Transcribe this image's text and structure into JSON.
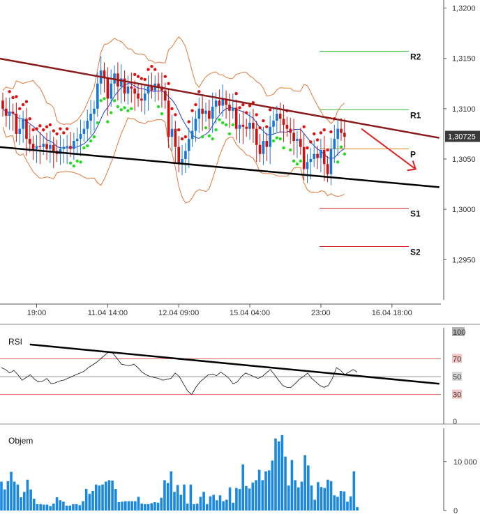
{
  "colors": {
    "candle_up": "#1a78d4",
    "candle_down": "#cc1111",
    "sar_bear": "#e01010",
    "sar_bull": "#22dd22",
    "bollinger": "#e0783a",
    "ma": "#2040cc",
    "resistance_line": "#8b1a1a",
    "support_line": "#000000",
    "pivot_resistance": "#33b833",
    "pivot_support": "#d02020",
    "pivot": "#e08a20",
    "arrow": "#e02020",
    "volume": "#1a88e0",
    "price_tag": "#3a3a3a"
  },
  "chart_data": [
    {
      "type": "candlestick",
      "title": "",
      "y_ticks": [
        "1,3200",
        "1,3150",
        "1,3100",
        "1,3050",
        "1,3000",
        "1,2950"
      ],
      "ylim": [
        1.291,
        1.3208
      ],
      "x_ticks": [
        "19:00",
        "11.04 14:00",
        "12.04 09:00",
        "15.04 04:00",
        "23:00",
        "16.04 18:00"
      ],
      "current_price": "1,30725",
      "pivot_levels": [
        {
          "label": "R2",
          "value": 1.3157
        },
        {
          "label": "R1",
          "value": 1.3099
        },
        {
          "label": "P",
          "value": 1.306
        },
        {
          "label": "S1",
          "value": 1.3001
        },
        {
          "label": "S2",
          "value": 1.2963
        }
      ],
      "trendlines": [
        {
          "name": "resistance",
          "from": [
            0,
            1.315
          ],
          "to": [
            129,
            1.3071
          ]
        },
        {
          "name": "support",
          "from": [
            0,
            1.3062
          ],
          "to": [
            129,
            1.3022
          ]
        }
      ],
      "forecast_arrow": {
        "from": [
          106,
          1.308
        ],
        "to": [
          122,
          1.304
        ]
      },
      "candles_close": [
        1.31,
        1.3093,
        1.3097,
        1.3095,
        1.3075,
        1.308,
        1.309,
        1.307,
        1.3065,
        1.306,
        1.3063,
        1.3062,
        1.3065,
        1.306,
        1.3064,
        1.3058,
        1.3055,
        1.306,
        1.3062,
        1.3063,
        1.306,
        1.3068,
        1.307,
        1.3075,
        1.308,
        1.3088,
        1.3095,
        1.31,
        1.3125,
        1.3138,
        1.313,
        1.311,
        1.3125,
        1.3135,
        1.3122,
        1.313,
        1.3115,
        1.3122,
        1.312,
        1.3115,
        1.311,
        1.3108,
        1.3115,
        1.3122,
        1.3118,
        1.3125,
        1.3122,
        1.3118,
        1.3108,
        1.3072,
        1.308,
        1.3062,
        1.3045,
        1.305,
        1.3058,
        1.307,
        1.3078,
        1.309,
        1.31,
        1.3095,
        1.3098,
        1.309,
        1.3102,
        1.3108,
        1.3103,
        1.311,
        1.3104,
        1.3098,
        1.3101,
        1.308,
        1.3084,
        1.3082,
        1.308,
        1.3086,
        1.308,
        1.3064,
        1.3055,
        1.3068,
        1.3062,
        1.3082,
        1.3088,
        1.3095,
        1.309,
        1.3084,
        1.308,
        1.3076,
        1.3068,
        1.307,
        1.3062,
        1.304,
        1.3047,
        1.305,
        1.3055,
        1.3051,
        1.3059,
        1.3045,
        1.3035,
        1.306,
        1.307,
        1.308,
        1.3076,
        1.3072
      ],
      "candles_open": [
        1.3108,
        1.31,
        1.3093,
        1.3097,
        1.3095,
        1.3075,
        1.308,
        1.309,
        1.307,
        1.3065,
        1.306,
        1.3063,
        1.3062,
        1.3065,
        1.306,
        1.3064,
        1.3058,
        1.3055,
        1.306,
        1.3062,
        1.3063,
        1.306,
        1.3068,
        1.307,
        1.3075,
        1.308,
        1.3088,
        1.3095,
        1.31,
        1.3125,
        1.3138,
        1.313,
        1.311,
        1.3125,
        1.3135,
        1.3122,
        1.313,
        1.3115,
        1.3122,
        1.312,
        1.3115,
        1.311,
        1.3108,
        1.3115,
        1.3122,
        1.3118,
        1.3125,
        1.3122,
        1.3118,
        1.3108,
        1.3072,
        1.308,
        1.3062,
        1.3045,
        1.305,
        1.3058,
        1.307,
        1.3078,
        1.309,
        1.31,
        1.3095,
        1.3098,
        1.309,
        1.3102,
        1.3108,
        1.3103,
        1.311,
        1.3104,
        1.3098,
        1.3101,
        1.308,
        1.3084,
        1.3082,
        1.308,
        1.3086,
        1.308,
        1.3064,
        1.3055,
        1.3068,
        1.3062,
        1.3082,
        1.3088,
        1.3095,
        1.309,
        1.3084,
        1.308,
        1.3076,
        1.3068,
        1.307,
        1.3062,
        1.304,
        1.3047,
        1.305,
        1.3055,
        1.3051,
        1.3059,
        1.3045,
        1.3035,
        1.306,
        1.307,
        1.308,
        1.3076
      ]
    },
    {
      "type": "line",
      "title": "RSI",
      "y_ticks": [
        "100",
        "70",
        "50",
        "30",
        "0"
      ],
      "ylim": [
        0,
        100
      ],
      "levels": [
        70,
        50,
        30
      ],
      "trendline": {
        "from": [
          8,
          86
        ],
        "to": [
          129,
          42
        ]
      },
      "series": [
        {
          "name": "RSI",
          "values": [
            60,
            58,
            54,
            57,
            52,
            46,
            49,
            52,
            47,
            44,
            45,
            48,
            42,
            43,
            45,
            46,
            48,
            50,
            52,
            54,
            56,
            60,
            63,
            66,
            70,
            74,
            78,
            76,
            70,
            64,
            63,
            62,
            64,
            60,
            55,
            52,
            50,
            49,
            48,
            46,
            47,
            48,
            54,
            50,
            42,
            34,
            30,
            38,
            44,
            48,
            52,
            53,
            51,
            55,
            52,
            48,
            42,
            44,
            50,
            54,
            52,
            50,
            48,
            50,
            54,
            58,
            52,
            46,
            40,
            38,
            38,
            42,
            47,
            50,
            54,
            48,
            44,
            40,
            38,
            40,
            48,
            60,
            57,
            52,
            55,
            58,
            55
          ]
        }
      ]
    },
    {
      "type": "bar",
      "title": "Objem",
      "y_ticks": [
        "10 000",
        "0"
      ],
      "ylim": [
        0,
        16800
      ],
      "series": [
        {
          "name": "Objem",
          "values": [
            5900,
            4300,
            6000,
            7900,
            5900,
            5300,
            2700,
            3800,
            6300,
            4300,
            2400,
            1300,
            1300,
            1200,
            1200,
            900,
            1400,
            2700,
            2100,
            1800,
            1000,
            1000,
            1300,
            1300,
            1100,
            1900,
            4400,
            3400,
            4000,
            5300,
            5100,
            5300,
            5900,
            6200,
            6100,
            4400,
            1700,
            1800,
            1900,
            1900,
            1900,
            1900,
            2800,
            1400,
            1300,
            1300,
            1500,
            1700,
            1600,
            2600,
            6200,
            5600,
            8000,
            3800,
            5200,
            3200,
            5300,
            1400,
            5300,
            1300,
            1400,
            2800,
            3800,
            1300,
            2900,
            3200,
            2100,
            3100,
            1900,
            2200,
            4700,
            1600,
            4600,
            4400,
            9400,
            5000,
            4500,
            5700,
            6200,
            8300,
            6200,
            8000,
            8200,
            10200,
            14700,
            14100,
            15400,
            11000,
            5100,
            10300,
            6200,
            4700,
            5900,
            11300,
            9200,
            5100,
            2200,
            5800,
            4800,
            4600,
            6300,
            6000,
            3100,
            2800,
            4000,
            3900,
            1800,
            2900,
            8000,
            700
          ]
        }
      ]
    }
  ]
}
